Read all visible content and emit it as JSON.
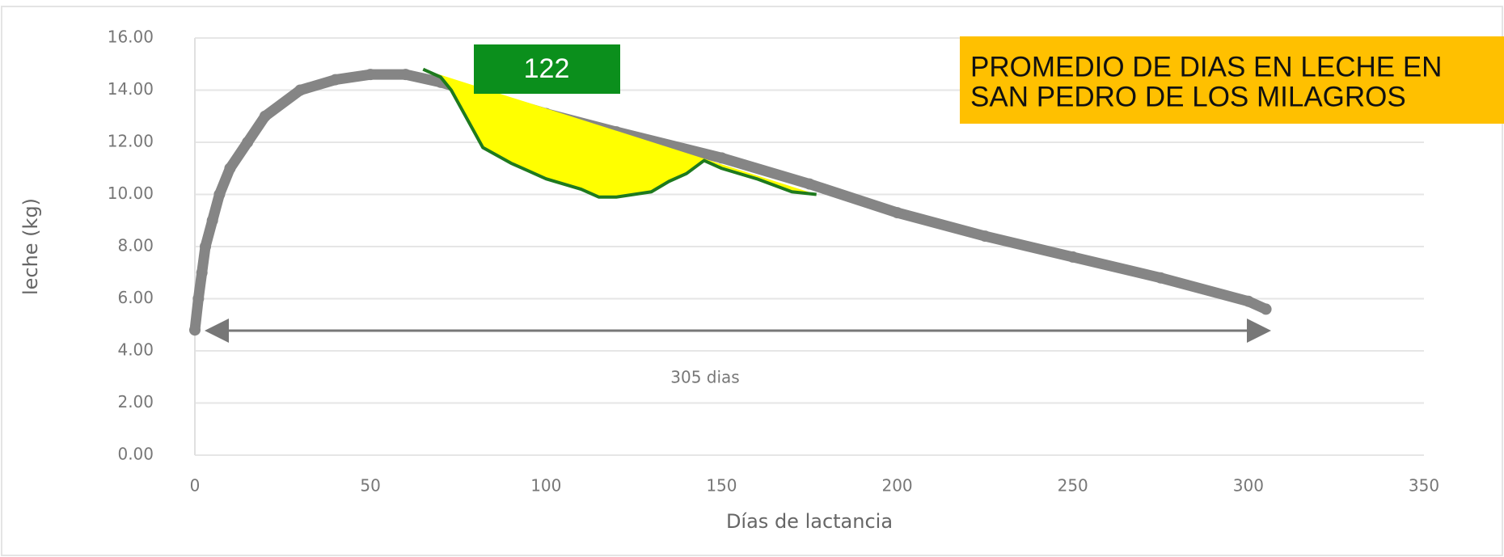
{
  "chart_data": {
    "type": "line",
    "title": [
      "PROMEDIO DE DIAS EN LECHE  EN",
      "SAN PEDRO DE LOS MILAGROS"
    ],
    "y_label": "leche (kg)",
    "x_label": "Días de lactancia",
    "annotations": [
      "122",
      "305 dias"
    ],
    "xlim": [
      0,
      350
    ],
    "xticks": [
      0,
      50,
      100,
      150,
      200,
      250,
      300,
      350
    ],
    "ylim": [
      0,
      16
    ],
    "yticks": [
      {
        "value": 0,
        "label": "0.00"
      },
      {
        "value": 2,
        "label": "2.00"
      },
      {
        "value": 4,
        "label": "4.00"
      },
      {
        "value": 6,
        "label": "6.00"
      },
      {
        "value": 8,
        "label": "8.00"
      },
      {
        "value": 10,
        "label": "10.00"
      },
      {
        "value": 12,
        "label": "12.00"
      },
      {
        "value": 14,
        "label": "14.00"
      },
      {
        "value": 16,
        "label": "16.00"
      }
    ],
    "grid": true,
    "series": [
      {
        "color": "#858585",
        "x": [
          0,
          1,
          2,
          3,
          5,
          7,
          10,
          15,
          20,
          30,
          40,
          50,
          60,
          70,
          80,
          100,
          120,
          150,
          175,
          200,
          225,
          250,
          275,
          300,
          305
        ],
        "values": [
          4.8,
          6,
          7,
          8,
          9,
          10,
          11,
          12,
          13,
          14,
          14.4,
          14.6,
          14.6,
          14.3,
          13.9,
          13.1,
          12.4,
          11.4,
          10.4,
          9.3,
          8.4,
          7.6,
          6.8,
          5.9,
          5.6
        ]
      },
      {
        "color": "#1e7a1e",
        "fill": "#ffff00",
        "x": [
          65,
          70,
          73,
          82,
          90,
          95,
          100,
          110,
          115,
          120,
          130,
          135,
          140,
          145,
          150,
          160,
          170,
          177
        ],
        "values": [
          14.8,
          14.5,
          14.0,
          11.8,
          11.2,
          10.9,
          10.6,
          10.2,
          9.9,
          9.9,
          10.1,
          10.5,
          10.8,
          11.3,
          11.0,
          10.6,
          10.1,
          10.0
        ]
      }
    ]
  }
}
